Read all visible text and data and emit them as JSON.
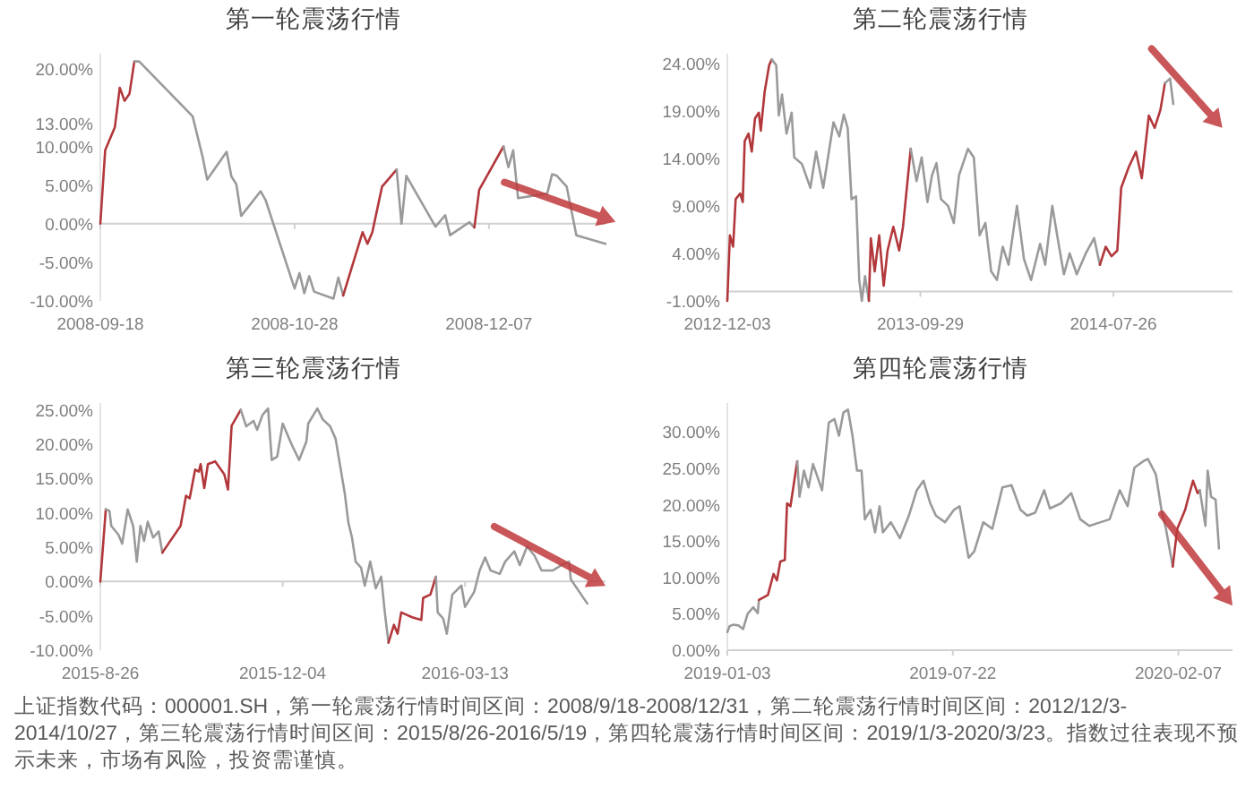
{
  "chart_data": [
    {
      "type": "line",
      "title": "第一轮震荡行情",
      "xlim": [
        "2008-09-18",
        "2008-12-31"
      ],
      "xticks": [
        "2008-09-18",
        "2008-10-28",
        "2008-12-07"
      ],
      "ylim": [
        -10,
        22
      ],
      "yticks": [
        {
          "value": -10,
          "label": "-10.00%"
        },
        {
          "value": -5,
          "label": "-5.00%"
        },
        {
          "value": 0,
          "label": "0.00%"
        },
        {
          "value": 5,
          "label": "5.00%"
        },
        {
          "value": 10,
          "label": "10.00%"
        },
        {
          "value": 13,
          "label": "13.00%"
        },
        {
          "value": 20,
          "label": "20.00%"
        }
      ],
      "series": [
        {
          "color": "#b2373b",
          "x": [
            "2008-09-18",
            "2008-09-19",
            "2008-09-21",
            "2008-09-22",
            "2008-09-23",
            "2008-09-24",
            "2008-09-25"
          ],
          "values": [
            0,
            9.5,
            12.5,
            17.6,
            15.9,
            16.8,
            21.0
          ]
        },
        {
          "color": "#9a9a9a",
          "x": [
            "2008-09-25",
            "2008-09-26",
            "2008-10-07",
            "2008-10-09",
            "2008-10-10",
            "2008-10-14",
            "2008-10-15",
            "2008-10-16",
            "2008-10-17",
            "2008-10-21",
            "2008-10-22",
            "2008-10-28",
            "2008-10-29",
            "2008-10-30",
            "2008-10-31",
            "2008-11-01",
            "2008-11-05",
            "2008-11-06",
            "2008-11-07"
          ],
          "values": [
            21.0,
            21.0,
            13.9,
            8.8,
            5.7,
            9.3,
            6.1,
            5.1,
            1.0,
            4.2,
            3.1,
            -8.4,
            -6.4,
            -9.0,
            -6.8,
            -8.8,
            -9.7,
            -7.0,
            -9.3
          ]
        },
        {
          "color": "#b2373b",
          "x": [
            "2008-11-07",
            "2008-11-11",
            "2008-11-12",
            "2008-11-13",
            "2008-11-15",
            "2008-11-18"
          ],
          "values": [
            -9.3,
            -1.1,
            -2.6,
            -1.1,
            4.8,
            7.0
          ]
        },
        {
          "color": "#9a9a9a",
          "x": [
            "2008-11-18",
            "2008-11-19",
            "2008-11-20",
            "2008-11-26",
            "2008-11-28",
            "2008-11-29",
            "2008-12-03",
            "2008-12-04"
          ],
          "values": [
            7.0,
            0,
            6.2,
            -0.4,
            1.1,
            -1.5,
            0.2,
            -0.5
          ]
        },
        {
          "color": "#b2373b",
          "x": [
            "2008-12-04",
            "2008-12-05",
            "2008-12-10"
          ],
          "values": [
            -0.5,
            4.4,
            10.0
          ]
        },
        {
          "color": "#9a9a9a",
          "x": [
            "2008-12-10",
            "2008-12-11",
            "2008-12-12",
            "2008-12-13",
            "2008-12-19",
            "2008-12-20",
            "2008-12-21",
            "2008-12-23",
            "2008-12-25",
            "2008-12-31"
          ],
          "values": [
            10.0,
            7.3,
            9.5,
            3.3,
            3.9,
            6.4,
            6.2,
            4.8,
            -1.5,
            -2.6
          ]
        }
      ]
    },
    {
      "type": "line",
      "title": "第二轮震荡行情",
      "xlim": [
        "2012-12-03",
        "2015-01-27"
      ],
      "xticks": [
        "2012-12-03",
        "2013-09-29",
        "2014-07-26"
      ],
      "ylim": [
        -1,
        25
      ],
      "yticks": [
        {
          "value": -1,
          "label": "-1.00%"
        },
        {
          "value": 4,
          "label": "4.00%"
        },
        {
          "value": 9,
          "label": "9.00%"
        },
        {
          "value": 14,
          "label": "14.00%"
        },
        {
          "value": 19,
          "label": "19.00%"
        },
        {
          "value": 24,
          "label": "24.00%"
        }
      ],
      "series": [
        {
          "color": "#b2373b",
          "x": [
            "2012-12-03",
            "2012-12-07",
            "2012-12-12",
            "2012-12-16",
            "2012-12-23",
            "2012-12-27",
            "2012-12-30",
            "2013-01-05",
            "2013-01-10",
            "2013-01-15",
            "2013-01-21",
            "2013-01-24",
            "2013-01-30",
            "2013-02-06",
            "2013-02-10"
          ],
          "values": [
            -1.0,
            5.9,
            4.7,
            9.7,
            10.3,
            9.4,
            15.8,
            16.6,
            14.7,
            18.2,
            18.8,
            16.9,
            21.0,
            23.8,
            24.4
          ]
        },
        {
          "color": "#9a9a9a",
          "x": [
            "2013-02-10",
            "2013-02-17",
            "2013-02-21",
            "2013-02-26",
            "2013-03-05",
            "2013-03-13",
            "2013-03-17",
            "2013-03-29",
            "2013-04-11",
            "2013-04-20",
            "2013-05-01",
            "2013-05-17",
            "2013-05-26",
            "2013-06-02",
            "2013-06-08",
            "2013-06-14",
            "2013-06-21",
            "2013-06-26",
            "2013-06-30",
            "2013-07-05",
            "2013-07-11"
          ],
          "values": [
            24.4,
            23.8,
            18.5,
            20.7,
            16.6,
            18.8,
            14.1,
            13.4,
            10.9,
            14.7,
            10.9,
            17.8,
            16.3,
            18.6,
            17.2,
            9.7,
            10.0,
            1.2,
            -1.0,
            1.6,
            -1.0
          ]
        },
        {
          "color": "#b2373b",
          "x": [
            "2013-07-11",
            "2013-07-14",
            "2013-07-20",
            "2013-07-27",
            "2013-08-03",
            "2013-08-09",
            "2013-08-18",
            "2013-08-27",
            "2013-09-02",
            "2013-09-14"
          ],
          "values": [
            -1.0,
            5.6,
            2.1,
            5.9,
            0.6,
            4.3,
            6.8,
            4.3,
            6.8,
            15.0
          ]
        },
        {
          "color": "#9a9a9a",
          "x": [
            "2013-09-14",
            "2013-09-23",
            "2013-10-01",
            "2013-10-10",
            "2013-10-17",
            "2013-10-24",
            "2013-10-31",
            "2013-11-11",
            "2013-11-20",
            "2013-11-28",
            "2013-12-12",
            "2013-12-21",
            "2013-12-30",
            "2014-01-08",
            "2014-01-17",
            "2014-01-26",
            "2014-02-04",
            "2014-02-13",
            "2014-02-26",
            "2014-03-09",
            "2014-03-20",
            "2014-04-03",
            "2014-04-11",
            "2014-04-22",
            "2014-05-01",
            "2014-05-10",
            "2014-05-19",
            "2014-05-30",
            "2014-06-13",
            "2014-06-26",
            "2014-07-05"
          ],
          "values": [
            15.0,
            11.6,
            14.1,
            9.4,
            12.2,
            13.5,
            9.7,
            9.0,
            7.2,
            12.2,
            15.0,
            14.1,
            5.9,
            7.2,
            2.1,
            1.2,
            4.7,
            2.8,
            9.0,
            3.4,
            1.2,
            5.0,
            2.8,
            9.0,
            5.3,
            1.8,
            4.0,
            1.8,
            4.0,
            5.6,
            2.8
          ]
        },
        {
          "color": "#b2373b",
          "x": [
            "2014-07-05",
            "2014-07-14",
            "2014-07-23",
            "2014-08-01",
            "2014-08-07",
            "2014-08-19",
            "2014-08-30",
            "2014-09-08",
            "2014-09-19",
            "2014-09-28",
            "2014-10-07",
            "2014-10-14"
          ],
          "values": [
            2.8,
            4.7,
            3.7,
            4.3,
            10.9,
            13.1,
            14.7,
            11.9,
            18.5,
            17.2,
            19.1,
            21.9
          ]
        },
        {
          "color": "#9a9a9a",
          "x": [
            "2014-10-14",
            "2014-10-22",
            "2014-10-27"
          ],
          "values": [
            21.9,
            22.4,
            19.7
          ]
        }
      ]
    },
    {
      "type": "line",
      "title": "第三轮震荡行情",
      "xlim": [
        "2015-08-26",
        "2016-05-29"
      ],
      "xticks": [
        {
          "value": "2015-08-26",
          "label": "2015-8-26"
        },
        "2015-12-04",
        "2016-03-13"
      ],
      "ylim": [
        -10,
        26
      ],
      "yticks": [
        {
          "value": -10,
          "label": "-10.00%"
        },
        {
          "value": -5,
          "label": "-5.00%"
        },
        {
          "value": 0,
          "label": "0.00%"
        },
        {
          "value": 5,
          "label": "5.00%"
        },
        {
          "value": 10,
          "label": "10.00%"
        },
        {
          "value": 15,
          "label": "15.00%"
        },
        {
          "value": 20,
          "label": "20.00%"
        },
        {
          "value": 25,
          "label": "25.00%"
        }
      ],
      "series": [
        {
          "color": "#b2373b",
          "x": [
            "2015-08-26",
            "2015-08-29"
          ],
          "values": [
            0,
            10.5
          ]
        },
        {
          "color": "#9a9a9a",
          "x": [
            "2015-08-29",
            "2015-08-31",
            "2015-09-01",
            "2015-09-05",
            "2015-09-07",
            "2015-09-10",
            "2015-09-13",
            "2015-09-15",
            "2015-09-17",
            "2015-09-19",
            "2015-09-21",
            "2015-09-24",
            "2015-09-27",
            "2015-09-29"
          ],
          "values": [
            10.5,
            10.3,
            8.1,
            6.8,
            5.5,
            10.5,
            8.1,
            2.9,
            8.1,
            5.9,
            8.7,
            6.4,
            7.3,
            4.2
          ]
        },
        {
          "color": "#b2373b",
          "x": [
            "2015-09-29",
            "2015-10-09",
            "2015-10-12",
            "2015-10-14",
            "2015-10-17",
            "2015-10-19",
            "2015-10-20",
            "2015-10-22",
            "2015-10-24",
            "2015-10-28",
            "2015-11-02",
            "2015-11-04",
            "2015-11-06",
            "2015-11-11"
          ],
          "values": [
            4.2,
            8.1,
            12.5,
            12.1,
            16.3,
            16.0,
            17.1,
            13.6,
            17.1,
            17.5,
            15.6,
            13.4,
            22.7,
            25.0
          ]
        },
        {
          "color": "#9a9a9a",
          "x": [
            "2015-11-11",
            "2015-11-14",
            "2015-11-18",
            "2015-11-20",
            "2015-11-23",
            "2015-11-26",
            "2015-11-28",
            "2015-12-01",
            "2015-12-04",
            "2015-12-09",
            "2015-12-13",
            "2015-12-17",
            "2015-12-18",
            "2015-12-23",
            "2015-12-26",
            "2015-12-30",
            "2016-01-02",
            "2016-01-07",
            "2016-01-09",
            "2016-01-11",
            "2016-01-13",
            "2016-01-16",
            "2016-01-18",
            "2016-01-21",
            "2016-01-24",
            "2016-01-27",
            "2016-01-29",
            "2016-01-31"
          ],
          "values": [
            25.0,
            22.6,
            23.4,
            22.1,
            24.3,
            25.2,
            17.7,
            18.2,
            23.0,
            19.9,
            17.7,
            20.4,
            23.0,
            25.2,
            23.6,
            22.6,
            20.8,
            12.9,
            8.6,
            6.4,
            2.9,
            2.0,
            -0.6,
            2.9,
            -1.0,
            0.7,
            -4.5,
            -8.9
          ]
        },
        {
          "color": "#b2373b",
          "x": [
            "2016-01-31",
            "2016-02-03",
            "2016-02-05",
            "2016-02-07",
            "2016-02-13",
            "2016-02-18",
            "2016-02-19",
            "2016-02-23",
            "2016-02-26"
          ],
          "values": [
            -8.9,
            -6.3,
            -7.6,
            -4.5,
            -5.2,
            -5.6,
            -2.4,
            -1.9,
            0.7
          ]
        },
        {
          "color": "#9a9a9a",
          "x": [
            "2016-02-26",
            "2016-02-27",
            "2016-03-01",
            "2016-03-03",
            "2016-03-06",
            "2016-03-11",
            "2016-03-13",
            "2016-03-18",
            "2016-03-21",
            "2016-03-24",
            "2016-03-27",
            "2016-04-01",
            "2016-04-04",
            "2016-04-09",
            "2016-04-12",
            "2016-04-16",
            "2016-04-20",
            "2016-04-24",
            "2016-04-30",
            "2016-05-05",
            "2016-05-09",
            "2016-05-10",
            "2016-05-19"
          ],
          "values": [
            0.7,
            -4.5,
            -5.4,
            -7.6,
            -1.9,
            -0.6,
            -3.7,
            -1.5,
            1.6,
            3.5,
            1.6,
            1.1,
            2.9,
            4.4,
            2.4,
            5.1,
            3.8,
            1.6,
            1.6,
            2.4,
            2.9,
            0.3,
            -3.2
          ]
        }
      ]
    },
    {
      "type": "line",
      "title": "第四轮震荡行情",
      "xlim": [
        "2019-01-03",
        "2020-03-26"
      ],
      "xticks": [
        "2019-01-03",
        "2019-07-22",
        "2020-02-07"
      ],
      "ylim": [
        0,
        34
      ],
      "yticks": [
        {
          "value": 0,
          "label": "0.00%"
        },
        {
          "value": 5,
          "label": "5.00%"
        },
        {
          "value": 10,
          "label": "10.00%"
        },
        {
          "value": 15,
          "label": "15.00%"
        },
        {
          "value": 20,
          "label": "20.00%"
        },
        {
          "value": 25,
          "label": "25.00%"
        },
        {
          "value": 30,
          "label": "30.00%"
        }
      ],
      "annotations": [
        "上证指数代码：000001.SH，第一轮震荡行情时间区间：2008/9/18-2008/12/31，第二轮震荡行情时间区间：2012/12/3-2014/10/27，第三轮震荡行情时间区间：2015/8/26-2016/5/19，第四轮震荡行情时间区间：2019/1/3-2020/3/23。指数过往表现不预示未来，市场有风险，投资需谨慎。"
      ],
      "series": [
        {
          "color": "#9a9a9a",
          "x": [
            "2019-01-03",
            "2019-01-05",
            "2019-01-08",
            "2019-01-13",
            "2019-01-17",
            "2019-01-21",
            "2019-01-26",
            "2019-01-30",
            "2019-01-31"
          ],
          "values": [
            2.5,
            3.3,
            3.5,
            3.4,
            2.9,
            5.0,
            5.9,
            5.1,
            6.9
          ]
        },
        {
          "color": "#b2373b",
          "x": [
            "2019-01-31",
            "2019-02-08",
            "2019-02-13",
            "2019-02-16",
            "2019-02-19",
            "2019-02-23",
            "2019-02-25",
            "2019-02-28",
            "2019-03-06"
          ],
          "values": [
            6.9,
            7.6,
            10.5,
            9.6,
            12.2,
            12.4,
            20.2,
            19.8,
            26.0
          ]
        },
        {
          "color": "#9a9a9a",
          "x": [
            "2019-03-06",
            "2019-03-08",
            "2019-03-12",
            "2019-03-16",
            "2019-03-20",
            "2019-03-28",
            "2019-04-03",
            "2019-04-08",
            "2019-04-12",
            "2019-04-16",
            "2019-04-20",
            "2019-04-24",
            "2019-04-28",
            "2019-05-02",
            "2019-05-05",
            "2019-05-10",
            "2019-05-14",
            "2019-05-18",
            "2019-05-21",
            "2019-05-28",
            "2019-06-05",
            "2019-06-13",
            "2019-06-20",
            "2019-06-26",
            "2019-07-02",
            "2019-07-07",
            "2019-07-15",
            "2019-07-23",
            "2019-07-28",
            "2019-08-05",
            "2019-08-10",
            "2019-08-18",
            "2019-08-26",
            "2019-09-04",
            "2019-09-12",
            "2019-09-20",
            "2019-09-26",
            "2019-10-03",
            "2019-10-11",
            "2019-10-16",
            "2019-10-26",
            "2019-11-04",
            "2019-11-12",
            "2019-11-20",
            "2019-11-30",
            "2019-12-08",
            "2019-12-17",
            "2019-12-24",
            "2019-12-30",
            "2020-01-07",
            "2020-01-11",
            "2020-01-18",
            "2020-01-23",
            "2020-01-27",
            "2020-02-02"
          ],
          "values": [
            26.0,
            21.1,
            24.7,
            22.4,
            25.6,
            22.0,
            31.3,
            31.8,
            29.5,
            32.7,
            33.1,
            29.5,
            24.7,
            24.7,
            18.0,
            19.3,
            16.2,
            19.8,
            16.2,
            17.6,
            15.4,
            18.5,
            22.0,
            23.3,
            20.2,
            18.5,
            17.6,
            19.3,
            19.8,
            12.7,
            13.6,
            17.6,
            16.7,
            22.4,
            22.7,
            19.3,
            18.5,
            18.9,
            22.0,
            19.5,
            20.2,
            21.6,
            18.0,
            17.1,
            17.6,
            18.0,
            22.0,
            19.8,
            25.1,
            26.0,
            26.3,
            24.2,
            19.3,
            16.7,
            11.5
          ]
        },
        {
          "color": "#b2373b",
          "x": [
            "2020-02-02",
            "2020-02-06",
            "2020-02-13",
            "2020-02-16",
            "2020-02-20",
            "2020-02-24",
            "2020-02-26"
          ],
          "values": [
            11.5,
            16.7,
            19.3,
            21.1,
            23.3,
            21.6,
            22.0
          ]
        },
        {
          "color": "#9a9a9a",
          "x": [
            "2020-02-26",
            "2020-03-02",
            "2020-03-04",
            "2020-03-07",
            "2020-03-11",
            "2020-03-14"
          ],
          "values": [
            22.0,
            17.1,
            24.7,
            21.1,
            20.7,
            14.0
          ]
        }
      ]
    }
  ]
}
